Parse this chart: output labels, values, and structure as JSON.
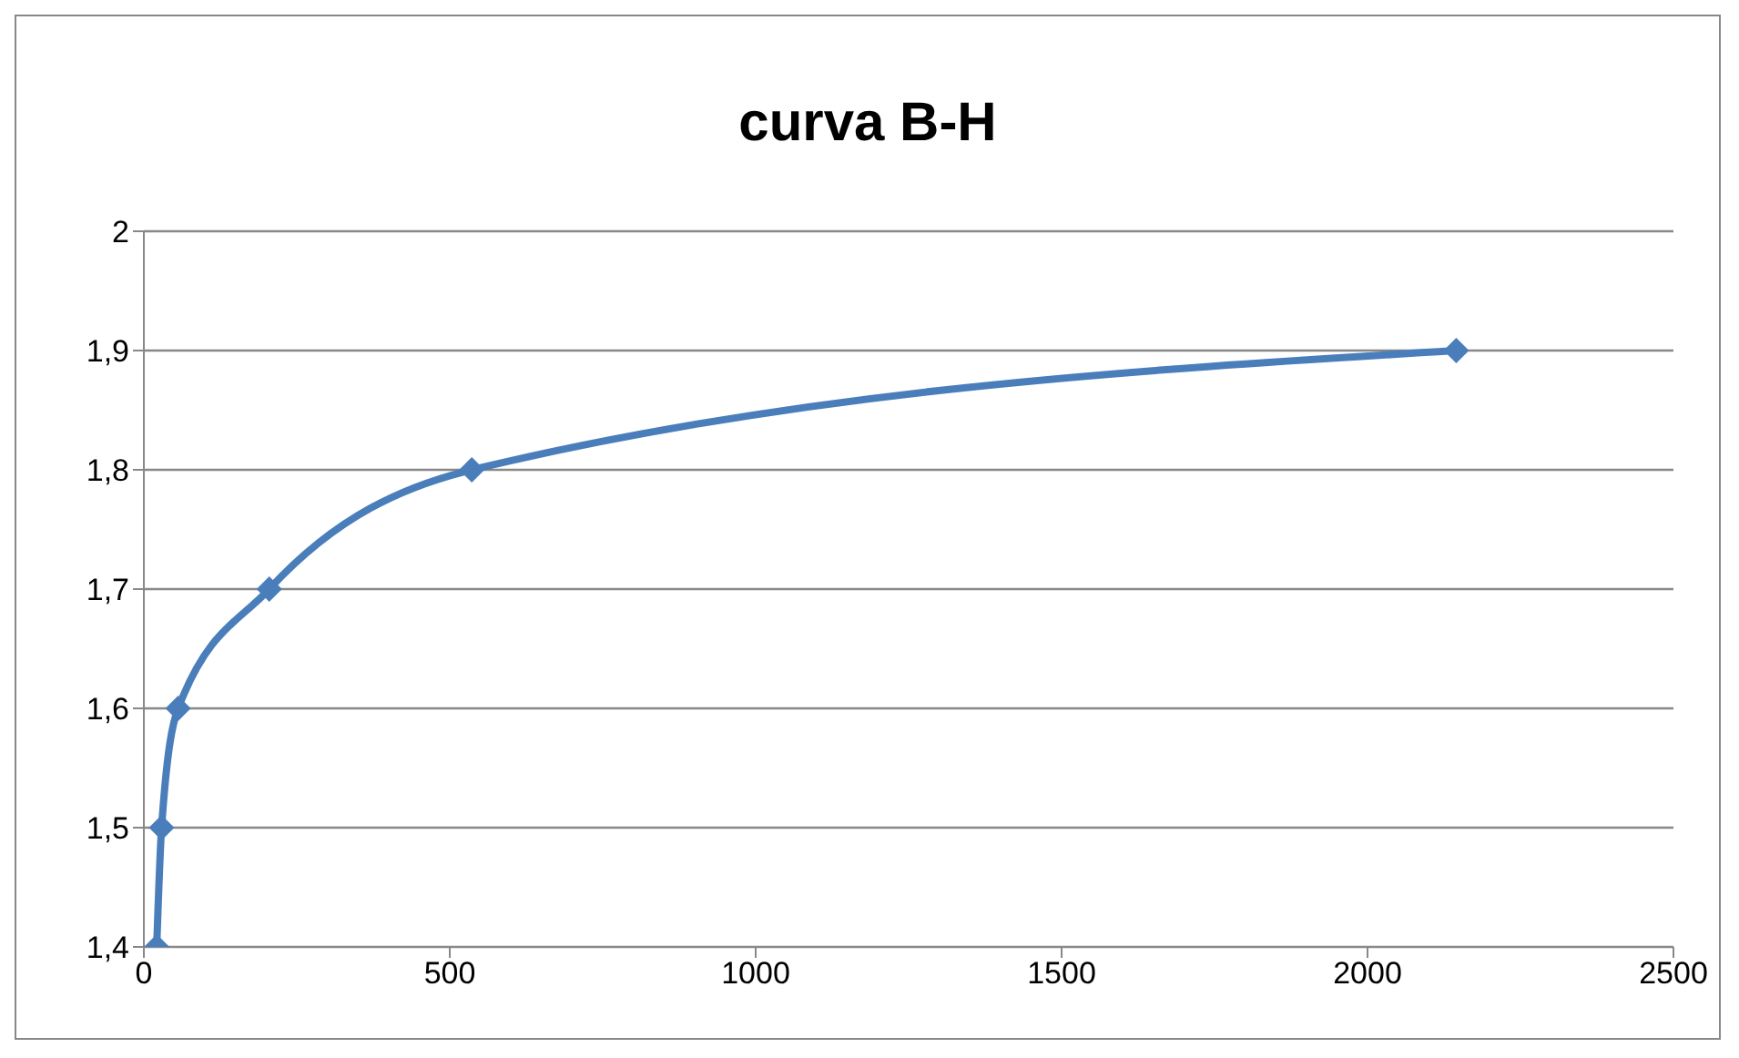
{
  "chart_data": {
    "type": "line",
    "title": "curva B-H",
    "x": [
      21,
      29,
      56,
      205,
      536,
      2145
    ],
    "series": [
      {
        "color": "#4a7ebb",
        "values": [
          1.4,
          1.5,
          1.6,
          1.7,
          1.8,
          1.9
        ]
      }
    ],
    "xlim": [
      0,
      2500
    ],
    "xticks": [
      0,
      500,
      1000,
      1500,
      2000,
      2500
    ],
    "ylim": [
      1.4,
      2
    ],
    "yticks": [
      {
        "value": 1.4,
        "label": "1,4"
      },
      {
        "value": 1.5,
        "label": "1,5"
      },
      {
        "value": 1.6,
        "label": "1,6"
      },
      {
        "value": 1.7,
        "label": "1,7"
      },
      {
        "value": 1.8,
        "label": "1,8"
      },
      {
        "value": 1.9,
        "label": "1,9"
      },
      {
        "value": 2,
        "label": "2"
      }
    ],
    "grid": "y",
    "legend": false,
    "marker": "diamond",
    "line_style": "solid"
  }
}
